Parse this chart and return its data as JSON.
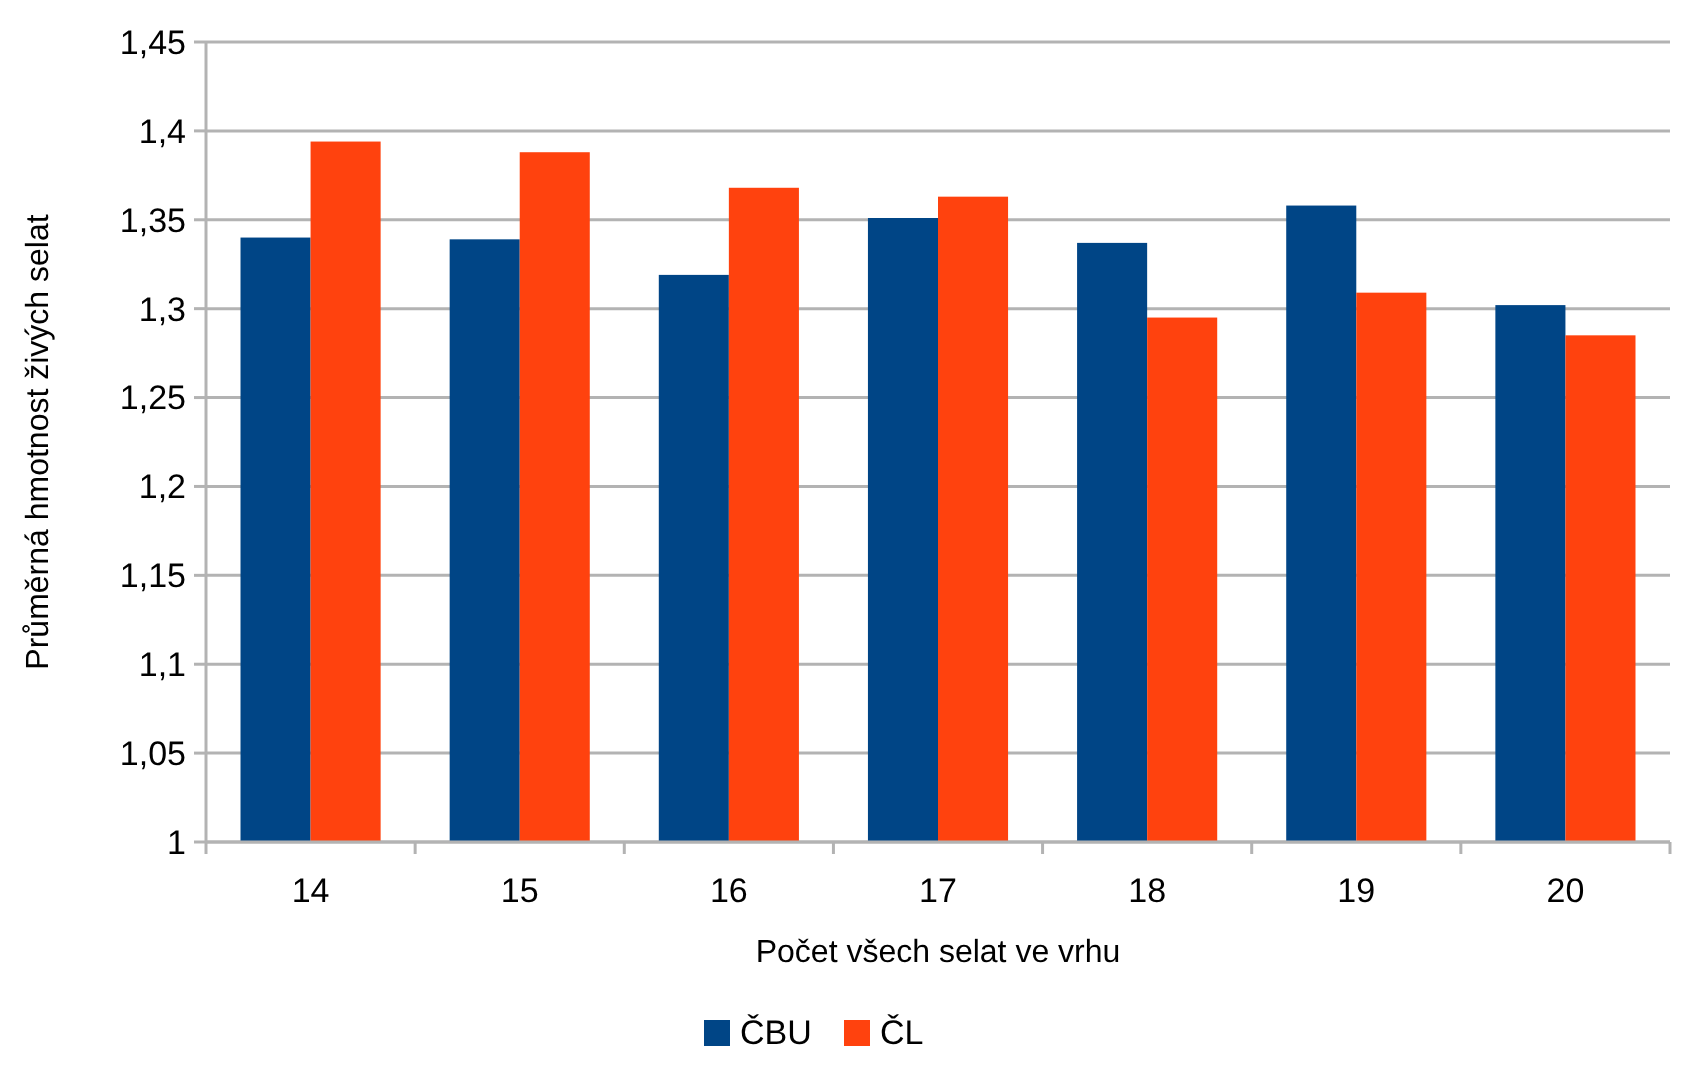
{
  "chart_data": {
    "type": "bar",
    "xlabel": "Počet všech selat ve vrhu",
    "ylabel": "Průměrná hmotnost živých selat",
    "categories": [
      "14",
      "15",
      "16",
      "17",
      "18",
      "19",
      "20"
    ],
    "series": [
      {
        "name": "ČBU",
        "color": "#004586",
        "values": [
          1.34,
          1.339,
          1.319,
          1.351,
          1.337,
          1.358,
          1.302
        ]
      },
      {
        "name": "ČL",
        "color": "#ff420e",
        "values": [
          1.394,
          1.388,
          1.368,
          1.363,
          1.295,
          1.309,
          1.285
        ]
      }
    ],
    "ylim": [
      1,
      1.45
    ],
    "yticks": [
      {
        "value": 1,
        "label": "1"
      },
      {
        "value": 1.05,
        "label": "1,05"
      },
      {
        "value": 1.1,
        "label": "1,1"
      },
      {
        "value": 1.15,
        "label": "1,15"
      },
      {
        "value": 1.2,
        "label": "1,2"
      },
      {
        "value": 1.25,
        "label": "1,25"
      },
      {
        "value": 1.3,
        "label": "1,3"
      },
      {
        "value": 1.35,
        "label": "1,35"
      },
      {
        "value": 1.4,
        "label": "1,4"
      },
      {
        "value": 1.45,
        "label": "1,45"
      }
    ],
    "grid": "y",
    "legend": "bottom"
  }
}
